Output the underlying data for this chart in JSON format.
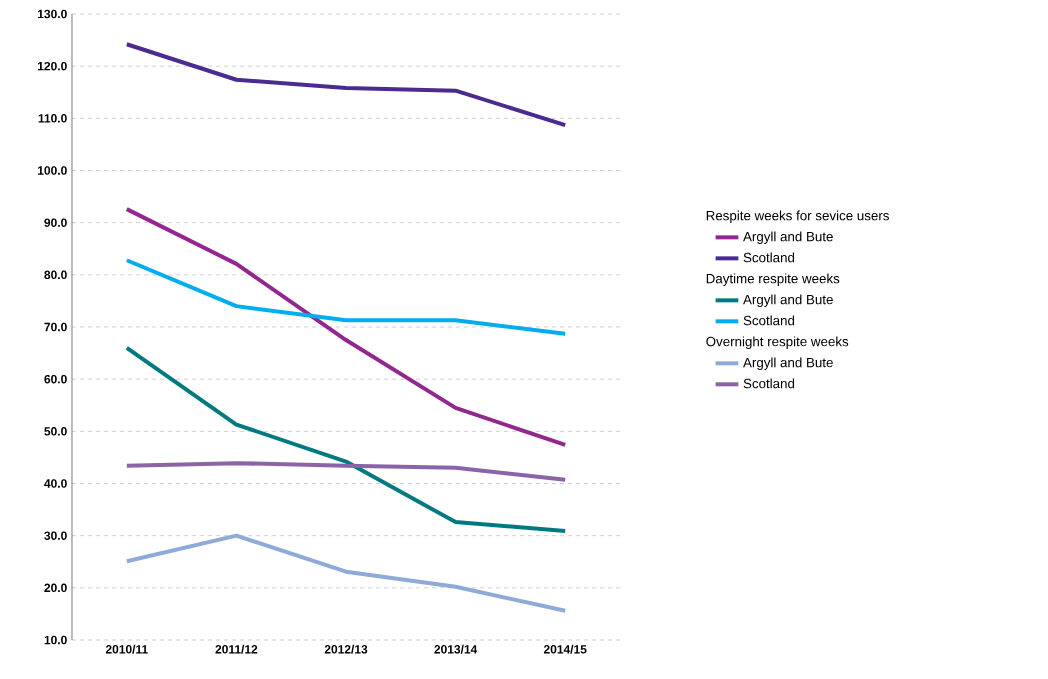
{
  "chart_data": {
    "type": "line",
    "categories": [
      "2010/11",
      "2011/12",
      "2012/13",
      "2013/14",
      "2014/15"
    ],
    "series": [
      {
        "name": "Argyll and Bute",
        "color": "#92278f",
        "values": [
          92.6,
          82.1,
          67.5,
          54.5,
          47.4
        ]
      },
      {
        "name": "Scotland",
        "color": "#4b2a91",
        "values": [
          124.2,
          117.4,
          115.8,
          115.3,
          108.7
        ]
      },
      {
        "name": "Argyll and Bute",
        "color": "#007a80",
        "values": [
          66.0,
          51.3,
          44.2,
          32.6,
          30.9
        ]
      },
      {
        "name": "Scotland",
        "color": "#00aeef",
        "values": [
          82.8,
          74.0,
          71.3,
          71.3,
          68.7
        ]
      },
      {
        "name": "Argyll and Bute",
        "color": "#8fa9d9",
        "values": [
          25.1,
          30.0,
          23.1,
          20.2,
          15.6
        ]
      },
      {
        "name": "Scotland",
        "color": "#8a63a8",
        "values": [
          43.4,
          43.9,
          43.4,
          43.0,
          40.7
        ]
      }
    ],
    "annotations": [
      "Respite weeks for sevice users",
      "Daytime respite weeks",
      "Overnight respite weeks"
    ],
    "ylim": [
      10,
      130
    ],
    "yticks": [
      {
        "value": 10,
        "label": "10.0"
      },
      {
        "value": 20,
        "label": "20.0"
      },
      {
        "value": 30,
        "label": "30.0"
      },
      {
        "value": 40,
        "label": "40.0"
      },
      {
        "value": 50,
        "label": "50.0"
      },
      {
        "value": 60,
        "label": "60.0"
      },
      {
        "value": 70,
        "label": "70.0"
      },
      {
        "value": 80,
        "label": "80.0"
      },
      {
        "value": 90,
        "label": "90.0"
      },
      {
        "value": 100,
        "label": "100.0"
      },
      {
        "value": 110,
        "label": "110.0"
      },
      {
        "value": 120,
        "label": "120.0"
      },
      {
        "value": 130,
        "label": "130.0"
      }
    ],
    "grid": "y",
    "legend": "right",
    "marker": "none",
    "line_style": "solid"
  }
}
